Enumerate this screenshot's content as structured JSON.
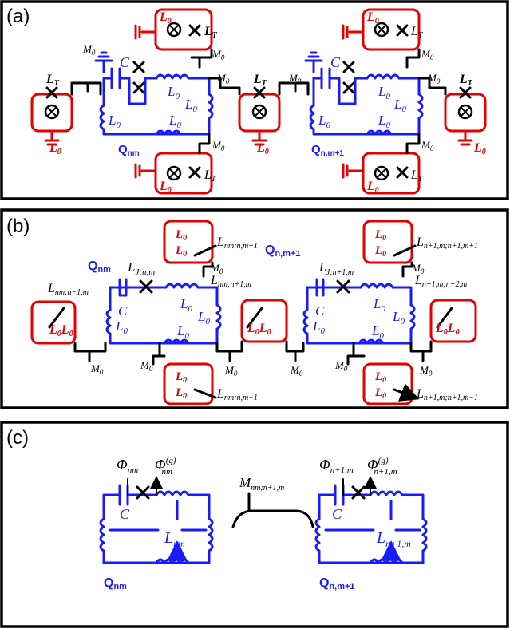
{
  "colors": {
    "qubit": "#1a1aff",
    "resonator": "#e60000",
    "coupling": "#000000"
  },
  "panel_a": {
    "label": "(a)",
    "L0": "L",
    "L0_sub": "0",
    "LT": "L",
    "LT_sub": "T",
    "M0": "M",
    "M0_sub": "0",
    "C": "C",
    "q_left": "Q",
    "q_left_sub": "nm",
    "q_right": "Q",
    "q_right_sub": "n,m+1"
  },
  "panel_b": {
    "label": "(b)",
    "q_left": "Q",
    "q_left_sub": "nm",
    "q_right": "Q",
    "q_right_sub": "n,m+1",
    "LJ_left": "L",
    "LJ_left_sub": "J;n,m",
    "LJ_right": "L",
    "LJ_right_sub": "J;n+1,m",
    "L_left_res": "L",
    "L_left_res_sub": "nm;n−1,m",
    "L_top_left": "L",
    "L_top_left_sub": "nm;n,m+1",
    "L_mid": "L",
    "L_mid_sub": "nm;n+1,m",
    "L_bot_left": "L",
    "L_bot_left_sub": "nm;n,m−1",
    "L_top_right": "L",
    "L_top_right_sub": "n+1,m;n+1,m+1",
    "L_right_res": "L",
    "L_right_res_sub": "n+1,m;n+2,m",
    "L_bot_right": "L",
    "L_bot_right_sub": "n+1,m;n+1,m−1"
  },
  "panel_c": {
    "label": "(c)",
    "phi": "Φ",
    "phi_left_sub": "nm",
    "phi_g_sup": "(g)",
    "phi_g_left_sub": "nm",
    "phi_right_sub": "n+1,m",
    "phi_g_right_sub": "n+1,m",
    "M": "M",
    "M_sub": "nm;n+1,m",
    "C": "C",
    "L_left": "L",
    "L_left_sub": "nm",
    "L_right": "L",
    "L_right_sub": "n+1,m",
    "q_left": "Q",
    "q_left_sub": "nm",
    "q_right": "Q",
    "q_right_sub": "n,m+1"
  }
}
